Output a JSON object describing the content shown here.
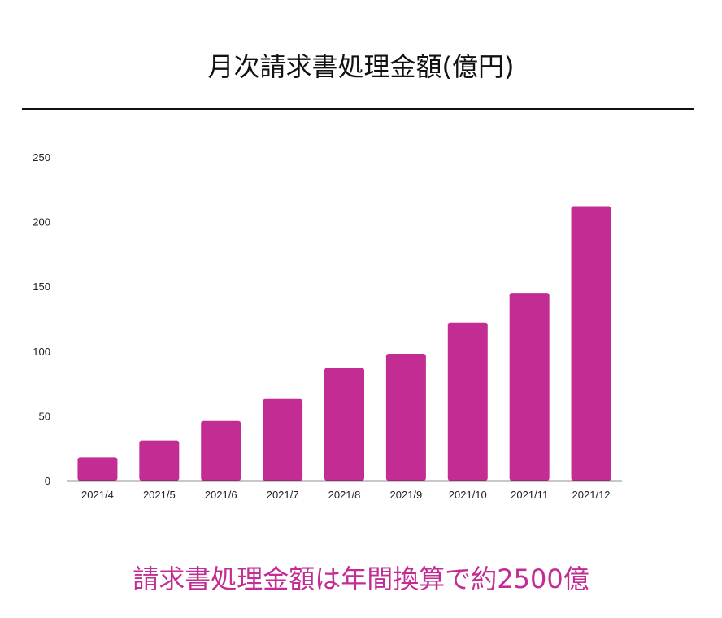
{
  "title": "月次請求書処理金額(億円)",
  "caption": "請求書処理金額は年間換算で約2500億",
  "colors": {
    "bar": "#c32c93",
    "caption": "#c32c93",
    "axis": "#222222"
  },
  "chart_data": {
    "type": "bar",
    "title": "月次請求書処理金額(億円)",
    "xlabel": "",
    "ylabel": "",
    "categories": [
      "2021/4",
      "2021/5",
      "2021/6",
      "2021/7",
      "2021/8",
      "2021/9",
      "2021/10",
      "2021/11",
      "2021/12"
    ],
    "values": [
      18,
      31,
      46,
      63,
      87,
      98,
      122,
      145,
      212
    ],
    "yticks": [
      0,
      50,
      100,
      150,
      200,
      250
    ],
    "ylim": [
      0,
      250
    ],
    "grid": false,
    "legend": "none"
  }
}
